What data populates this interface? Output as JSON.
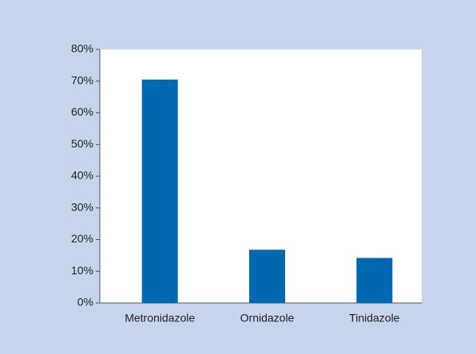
{
  "chart_data": {
    "type": "bar",
    "categories": [
      "Metronidazole",
      "Ornidazole",
      "Tinidazole"
    ],
    "values": [
      70.5,
      16.8,
      14.2
    ],
    "color": "#0067b1",
    "ylim": [
      0,
      80
    ],
    "yticks": [
      {
        "value": 0,
        "label": "0%"
      },
      {
        "value": 10,
        "label": "10%"
      },
      {
        "value": 20,
        "label": "20%"
      },
      {
        "value": 30,
        "label": "30%"
      },
      {
        "value": 40,
        "label": "40%"
      },
      {
        "value": 50,
        "label": "50%"
      },
      {
        "value": 60,
        "label": "60%"
      },
      {
        "value": 70,
        "label": "70%"
      },
      {
        "value": 80,
        "label": "80%"
      }
    ],
    "grid": false
  }
}
